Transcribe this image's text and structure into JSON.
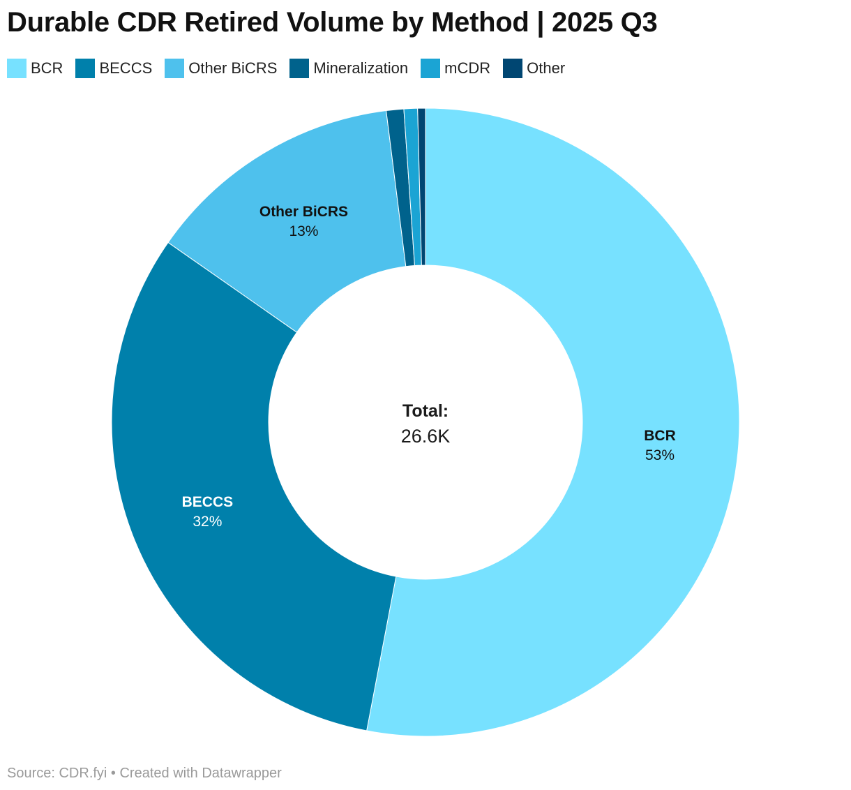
{
  "chart_data": {
    "type": "pie",
    "title": "Durable CDR Retired Volume by Method | 2025 Q3",
    "center_label": {
      "title": "Total:",
      "value": "26.6K"
    },
    "legend_placement": "top-left",
    "series": [
      {
        "name": "BCR",
        "value": 53.0,
        "label": "53%",
        "color": "#77e1ff",
        "label_color": "#111111"
      },
      {
        "name": "BECCS",
        "value": 31.7,
        "label": "32%",
        "color": "#0080ab",
        "label_color": "#ffffff"
      },
      {
        "name": "Other BiCRS",
        "value": 13.3,
        "label": "13%",
        "color": "#4ec1ed",
        "label_color": "#111111"
      },
      {
        "name": "Mineralization",
        "value": 0.9,
        "label": "",
        "color": "#00628c",
        "label_color": "#111111"
      },
      {
        "name": "mCDR",
        "value": 0.7,
        "label": "",
        "color": "#1ba4d4",
        "label_color": "#111111"
      },
      {
        "name": "Other",
        "value": 0.4,
        "label": "",
        "color": "#004672",
        "label_color": "#111111"
      }
    ]
  },
  "footer": {
    "source": "Source: CDR.fyi • Created with Datawrapper"
  }
}
